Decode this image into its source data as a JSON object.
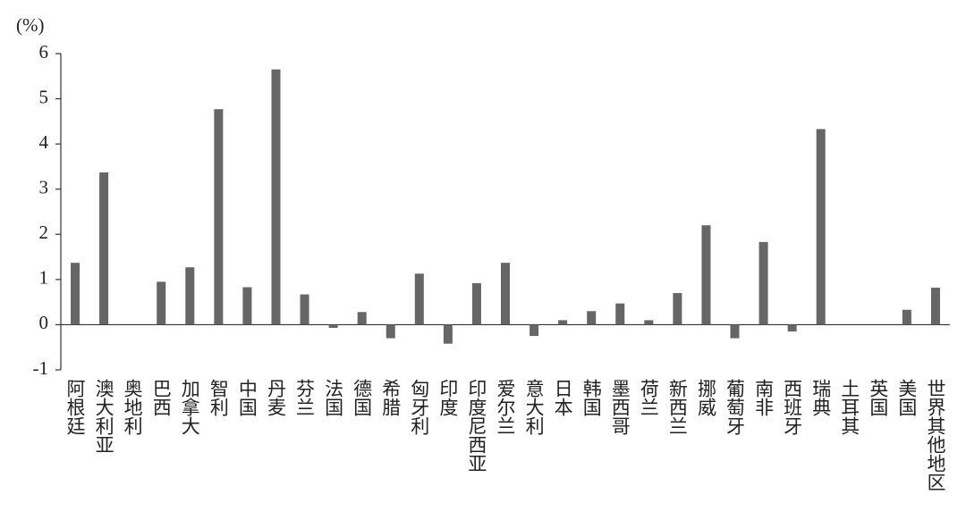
{
  "chart_data": {
    "type": "bar",
    "y_label": "(%)",
    "categories": [
      "阿根廷",
      "澳大利亚",
      "奥地利",
      "巴西",
      "加拿大",
      "智利",
      "中国",
      "丹麦",
      "芬兰",
      "法国",
      "德国",
      "希腊",
      "匈牙利",
      "印度",
      "印度尼西亚",
      "爱尔兰",
      "意大利",
      "日本",
      "韩国",
      "墨西哥",
      "荷兰",
      "新西兰",
      "挪威",
      "葡萄牙",
      "南非",
      "西班牙",
      "瑞典",
      "土耳其",
      "英国",
      "美国",
      "世界其他地区"
    ],
    "values": [
      1.37,
      3.37,
      0,
      0.95,
      1.27,
      4.77,
      0.83,
      5.65,
      0.67,
      -0.07,
      0.28,
      -0.3,
      1.13,
      -0.42,
      0.92,
      1.37,
      -0.25,
      0.1,
      0.3,
      0.47,
      0.1,
      0.7,
      2.2,
      -0.3,
      1.83,
      -0.15,
      4.33,
      0,
      0,
      0.33,
      0.82
    ],
    "color": "#666666",
    "ylim": [
      -1,
      6
    ],
    "yticks": [
      -1,
      0,
      1,
      2,
      3,
      4,
      5,
      6
    ]
  }
}
